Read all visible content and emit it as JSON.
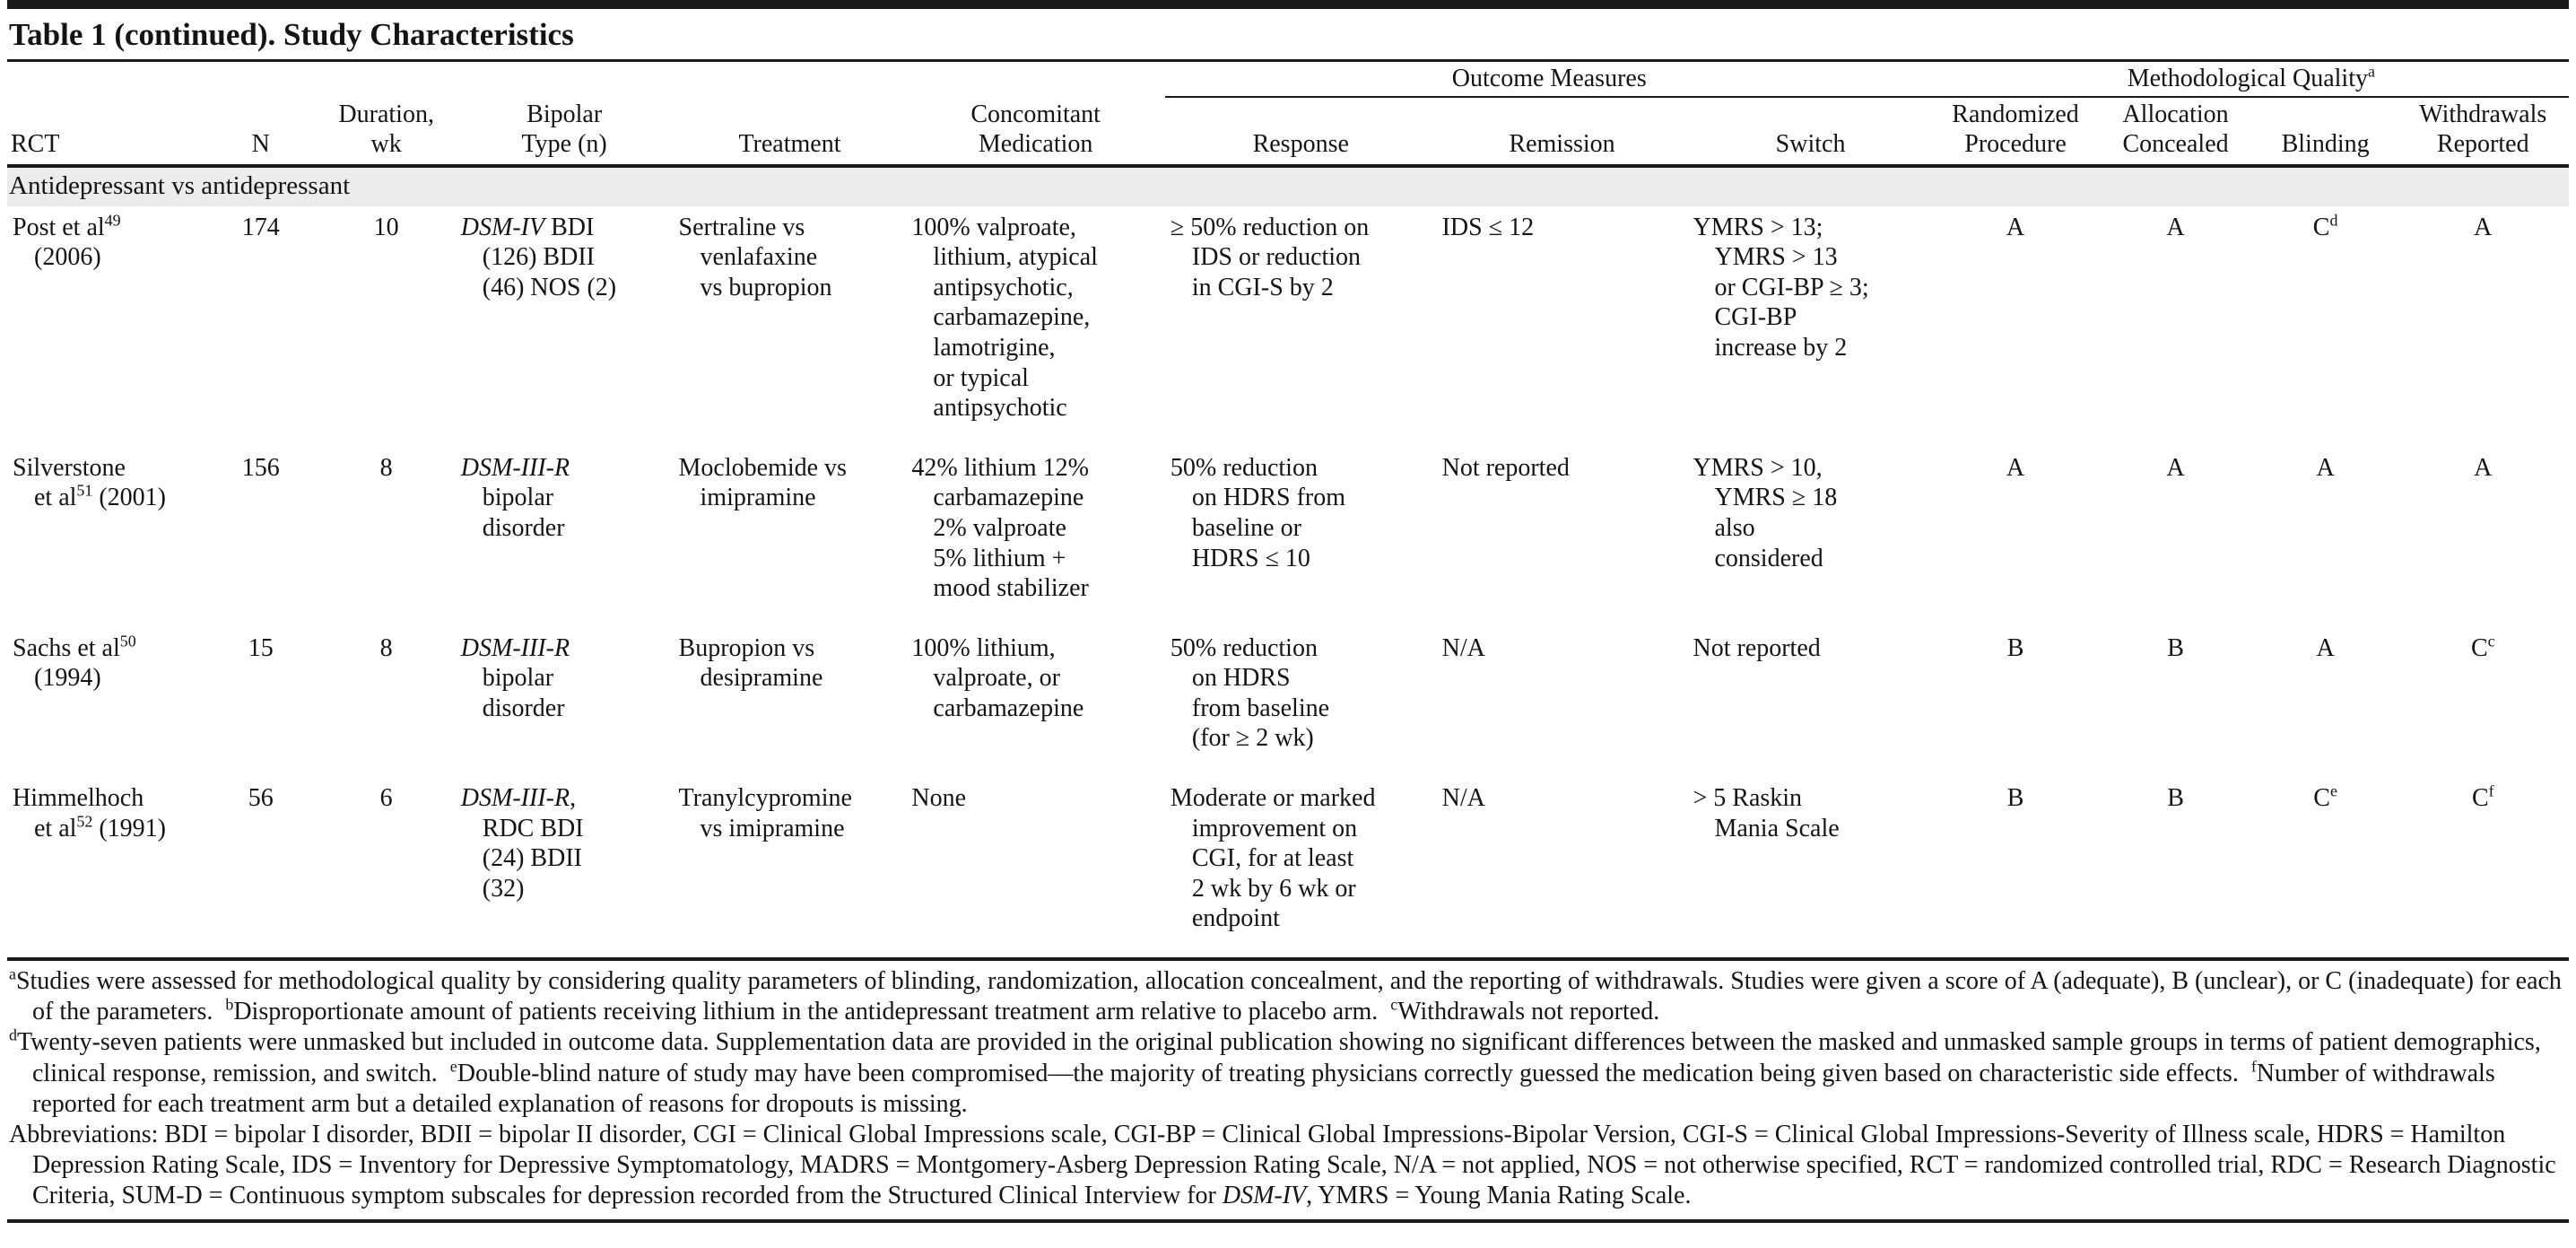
{
  "title": "Table 1 (continued). Study Characteristics",
  "colors": {
    "band": "#ececec",
    "line": "#1a1a1a",
    "text": "#141414"
  },
  "header": {
    "rct": "RCT",
    "n": "N",
    "duration": "Duration,\nwk",
    "bipolar_type": "Bipolar\nType (n)",
    "treatment": "Treatment",
    "concomitant": "Concomitant\nMedication",
    "outcome_measures": "Outcome Measures",
    "response": "Response",
    "remission": "Remission",
    "switch": "Switch",
    "method_quality": "Methodological Quality^{a}",
    "randomized": "Randomized\nProcedure",
    "allocation": "Allocation\nConcealed",
    "blinding": "Blinding",
    "withdrawals": "Withdrawals\nReported"
  },
  "section_label": "Antidepressant vs antidepressant",
  "rows": [
    {
      "rct": "Post et al^{49}\n(2006)",
      "n": "174",
      "duration": "10",
      "bipolar_type": "*DSM-IV* BDI\n(126) BDII\n(46) NOS (2)",
      "treatment": "Sertraline vs\nvenlafaxine\nvs bupropion",
      "concomitant": "100% valproate,\nlithium, atypical\nantipsychotic,\ncarbamazepine,\nlamotrigine,\nor typical\nantipsychotic",
      "response": "≥ 50% reduction on\nIDS or reduction\nin CGI-S by 2",
      "remission": "IDS ≤ 12",
      "switch": "YMRS > 13;\nYMRS > 13\nor CGI-BP ≥ 3;\nCGI-BP\nincrease by 2",
      "randomized": "A",
      "allocation": "A",
      "blinding": "C^{d}",
      "withdrawals": "A"
    },
    {
      "rct": "Silverstone\net al^{51} (2001)",
      "n": "156",
      "duration": "8",
      "bipolar_type": "*DSM-III-R*\nbipolar\ndisorder",
      "treatment": "Moclobemide vs\nimipramine",
      "concomitant": "42% lithium 12%\ncarbamazepine\n2% valproate\n5% lithium +\nmood stabilizer",
      "response": "50% reduction\non HDRS from\nbaseline or\nHDRS ≤ 10",
      "remission": "Not reported",
      "switch": "YMRS > 10,\nYMRS ≥ 18\nalso\nconsidered",
      "randomized": "A",
      "allocation": "A",
      "blinding": "A",
      "withdrawals": "A"
    },
    {
      "rct": "Sachs et al^{50}\n(1994)",
      "n": "15",
      "duration": "8",
      "bipolar_type": "*DSM-III-R*\nbipolar\ndisorder",
      "treatment": "Bupropion vs\ndesipramine",
      "concomitant": "100% lithium,\nvalproate, or\ncarbamazepine",
      "response": "50% reduction\non HDRS\nfrom baseline\n(for ≥ 2 wk)",
      "remission": "N/A",
      "switch": "Not reported",
      "randomized": "B",
      "allocation": "B",
      "blinding": "A",
      "withdrawals": "C^{c}"
    },
    {
      "rct": "Himmelhoch\net al^{52} (1991)",
      "n": "56",
      "duration": "6",
      "bipolar_type": "*DSM-III-R*,\nRDC BDI\n(24) BDII\n(32)",
      "treatment": "Tranylcypromine\nvs imipramine",
      "concomitant": "None",
      "response": "Moderate or marked\nimprovement on\nCGI, for at least\n2 wk by 6 wk or\nendpoint",
      "remission": "N/A",
      "switch": "> 5 Raskin\nMania Scale",
      "randomized": "B",
      "allocation": "B",
      "blinding": "C^{e}",
      "withdrawals": "C^{f}"
    }
  ],
  "footnotes": [
    "^{a}Studies were assessed for methodological quality by considering quality parameters of blinding, randomization, allocation concealment, and the reporting of withdrawals. Studies were given a score of A (adequate), B (unclear), or C (inadequate) for each of the parameters.  ^{b}Disproportionate amount of patients receiving lithium in the antidepressant treatment arm relative to placebo arm.  ^{c}Withdrawals not reported.",
    "^{d}Twenty-seven patients were unmasked but included in outcome data. Supplementation data are provided in the original publication showing no significant differences between the masked and unmasked sample groups in terms of patient demographics, clinical response, remission, and switch.  ^{e}Double-blind nature of study may have been compromised—the majority of treating physicians correctly guessed the medication being given based on characteristic side effects.  ^{f}Number of withdrawals reported for each treatment arm but a detailed explanation of reasons for dropouts is missing.",
    "Abbreviations: BDI = bipolar I disorder, BDII = bipolar II disorder, CGI = Clinical Global Impressions scale, CGI-BP = Clinical Global Impressions-Bipolar Version, CGI-S = Clinical Global Impressions-Severity of Illness scale, HDRS = Hamilton Depression Rating Scale, IDS = Inventory for Depressive Symptomatology, MADRS = Montgomery-Asberg Depression Rating Scale, N/A = not applied, NOS = not otherwise specified, RCT = randomized controlled trial, RDC = Research Diagnostic Criteria, SUM-D = Continuous symptom subscales for depression recorded from the Structured Clinical Interview for *DSM-IV*, YMRS = Young Mania Rating Scale."
  ]
}
